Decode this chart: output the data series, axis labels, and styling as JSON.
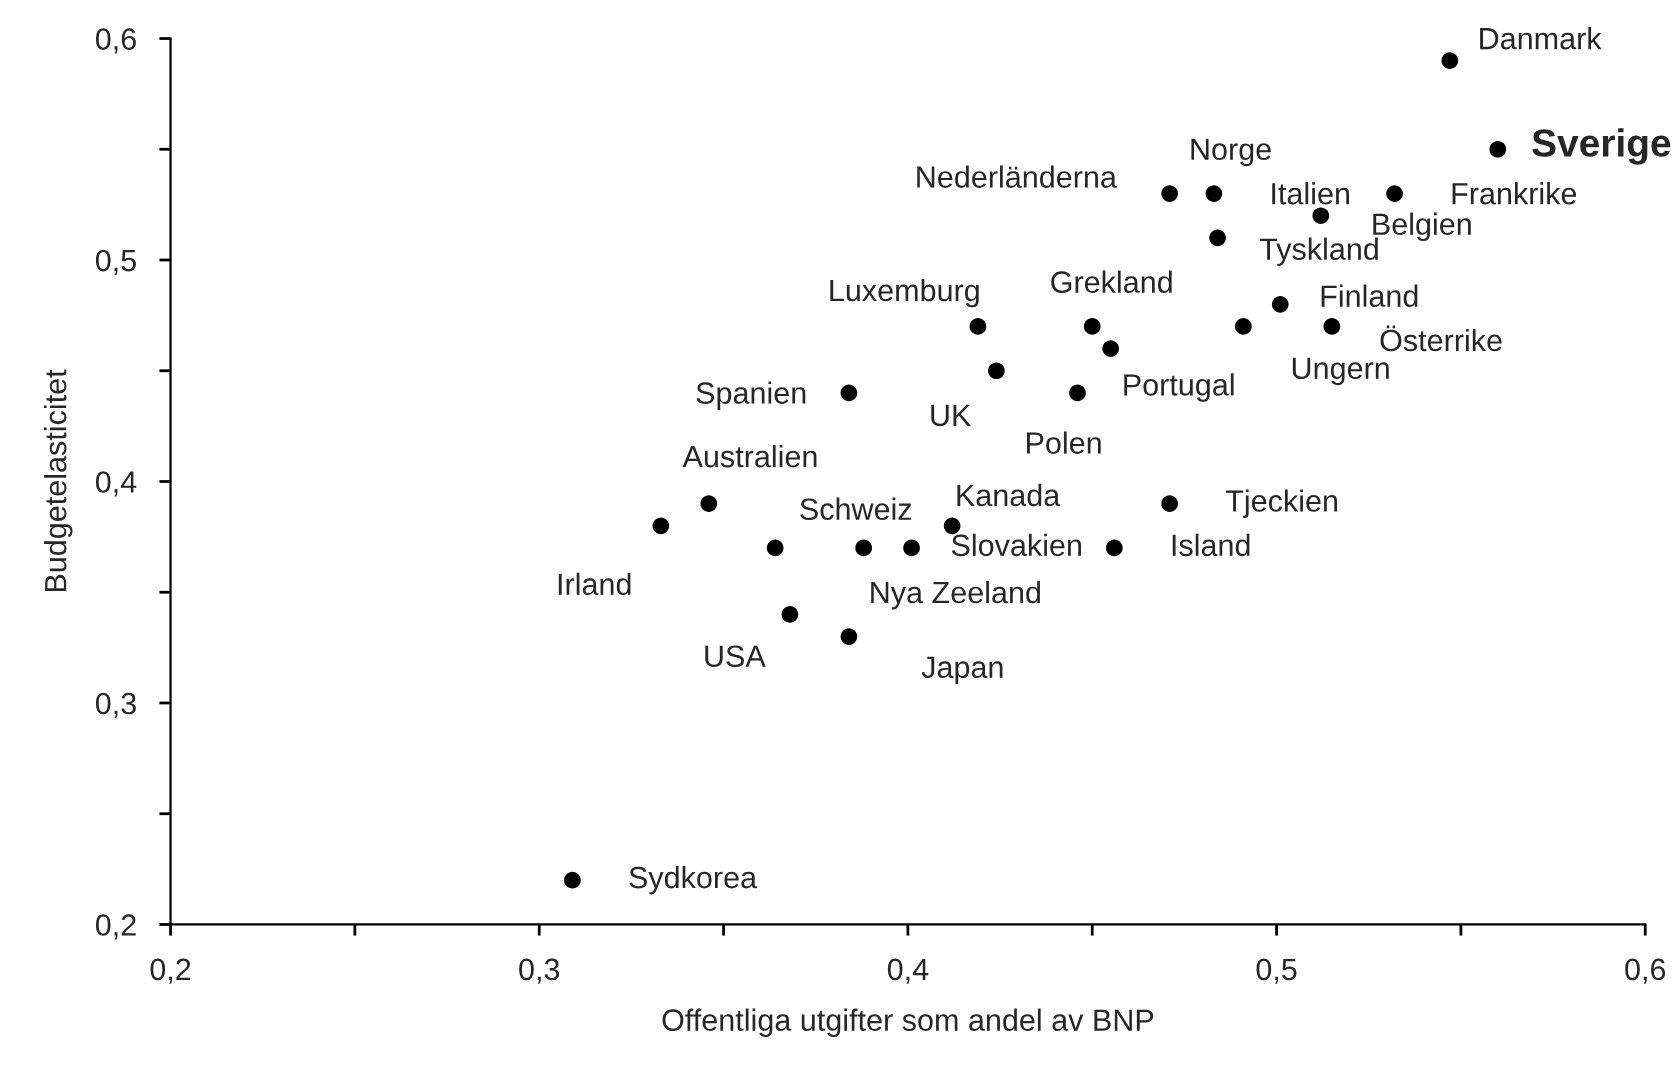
{
  "chart_data": {
    "type": "scatter",
    "xlabel": "Offentliga utgifter som andel av BNP",
    "ylabel": "Budgetelasticitet",
    "xlim": [
      0.2,
      0.6
    ],
    "ylim": [
      0.2,
      0.6
    ],
    "xticks": [
      {
        "value": 0.2,
        "label": "0,2"
      },
      {
        "value": 0.25,
        "label": null
      },
      {
        "value": 0.3,
        "label": "0,3"
      },
      {
        "value": 0.35,
        "label": null
      },
      {
        "value": 0.4,
        "label": "0,4"
      },
      {
        "value": 0.45,
        "label": null
      },
      {
        "value": 0.5,
        "label": "0,5"
      },
      {
        "value": 0.55,
        "label": null
      },
      {
        "value": 0.6,
        "label": "0,6"
      }
    ],
    "yticks": [
      {
        "value": 0.2,
        "label": "0,2"
      },
      {
        "value": 0.25,
        "label": null
      },
      {
        "value": 0.3,
        "label": "0,3"
      },
      {
        "value": 0.35,
        "label": null
      },
      {
        "value": 0.4,
        "label": "0,4"
      },
      {
        "value": 0.45,
        "label": null
      },
      {
        "value": 0.5,
        "label": "0,5"
      },
      {
        "value": 0.55,
        "label": null
      },
      {
        "value": 0.6,
        "label": "0,6"
      }
    ],
    "grid": false,
    "legend": false,
    "marker": "circle",
    "series": [
      {
        "color": "#000000",
        "x": [
          0.547,
          0.56,
          0.532,
          0.512,
          0.483,
          0.471,
          0.484,
          0.501,
          0.515,
          0.491,
          0.45,
          0.455,
          0.446,
          0.419,
          0.424,
          0.384,
          0.346,
          0.333,
          0.364,
          0.388,
          0.401,
          0.412,
          0.471,
          0.456,
          0.368,
          0.384,
          0.309
        ],
        "values": [
          0.59,
          0.55,
          0.53,
          0.52,
          0.53,
          0.53,
          0.51,
          0.48,
          0.47,
          0.47,
          0.47,
          0.46,
          0.44,
          0.47,
          0.45,
          0.44,
          0.39,
          0.38,
          0.37,
          0.37,
          0.37,
          0.38,
          0.39,
          0.37,
          0.34,
          0.33,
          0.22
        ]
      }
    ],
    "annotations": [
      {
        "text": "Danmark",
        "x": 0.547,
        "y": 0.59
      },
      {
        "text": "Sverige",
        "x": 0.56,
        "y": 0.55
      },
      {
        "text": "Frankrike",
        "x": 0.532,
        "y": 0.53
      },
      {
        "text": "Belgien",
        "x": 0.512,
        "y": 0.52
      },
      {
        "text": "Norge",
        "x": 0.483,
        "y": 0.53
      },
      {
        "text": "Italien",
        "x": 0.483,
        "y": 0.53
      },
      {
        "text": "Nederländerna",
        "x": 0.471,
        "y": 0.53
      },
      {
        "text": "Tyskland",
        "x": 0.484,
        "y": 0.51
      },
      {
        "text": "Finland",
        "x": 0.501,
        "y": 0.48
      },
      {
        "text": "Österrike",
        "x": 0.515,
        "y": 0.47
      },
      {
        "text": "Ungern",
        "x": 0.491,
        "y": 0.47
      },
      {
        "text": "Grekland",
        "x": 0.45,
        "y": 0.47
      },
      {
        "text": "Portugal",
        "x": 0.455,
        "y": 0.46
      },
      {
        "text": "Polen",
        "x": 0.446,
        "y": 0.44
      },
      {
        "text": "Luxemburg",
        "x": 0.419,
        "y": 0.47
      },
      {
        "text": "UK",
        "x": 0.424,
        "y": 0.45
      },
      {
        "text": "Spanien",
        "x": 0.384,
        "y": 0.44
      },
      {
        "text": "Australien",
        "x": 0.346,
        "y": 0.39
      },
      {
        "text": "Irland",
        "x": 0.333,
        "y": 0.38
      },
      {
        "text": "Schweiz",
        "x": 0.364,
        "y": 0.37
      },
      {
        "text": "Nya Zeeland",
        "x": 0.388,
        "y": 0.37
      },
      {
        "text": "Slovakien",
        "x": 0.401,
        "y": 0.37
      },
      {
        "text": "Kanada",
        "x": 0.412,
        "y": 0.38
      },
      {
        "text": "Tjeckien",
        "x": 0.471,
        "y": 0.39
      },
      {
        "text": "Island",
        "x": 0.456,
        "y": 0.37
      },
      {
        "text": "USA",
        "x": 0.368,
        "y": 0.34
      },
      {
        "text": "Japan",
        "x": 0.384,
        "y": 0.33
      },
      {
        "text": "Sydkorea",
        "x": 0.309,
        "y": 0.22
      }
    ]
  }
}
